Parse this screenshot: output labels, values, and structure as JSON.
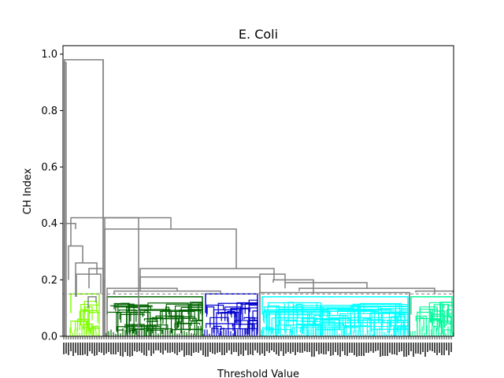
{
  "chart_data": {
    "type": "dendrogram",
    "title": "E. Coli",
    "xlabel": "Threshold Value",
    "ylabel": "CH Index",
    "ylim": [
      0.0,
      1.03
    ],
    "yticks": [
      {
        "value": 0.0,
        "label": "0.0"
      },
      {
        "value": 0.2,
        "label": "0.2"
      },
      {
        "value": 0.4,
        "label": "0.4"
      },
      {
        "value": 0.6,
        "label": "0.6"
      },
      {
        "value": 0.8,
        "label": "0.8"
      },
      {
        "value": 1.0,
        "label": "1.0"
      }
    ],
    "cut_threshold": 0.15,
    "link_color_above_threshold": "#808080",
    "cut_line_color": "#808080",
    "root_height": 0.98,
    "merges": [
      {
        "height": 0.42,
        "note": "left clusters joined to remaining clusters"
      },
      {
        "height": 0.38,
        "note": "green group joined to blue/cyan/spring groups"
      },
      {
        "height": 0.24,
        "note": "green-side merge"
      },
      {
        "height": 0.21,
        "note": "blue joined to cyan/spring"
      },
      {
        "height": 0.19,
        "note": "cyan joined to spring green"
      },
      {
        "height": 0.17,
        "note": "cyan internal merge"
      }
    ],
    "clusters": [
      {
        "color": "#7fff00",
        "top_height": 0.15
      },
      {
        "color": "#006400",
        "top_height": 0.14
      },
      {
        "color": "#0000cd",
        "top_height": 0.15
      },
      {
        "color": "#00ffff",
        "top_height": 0.14
      },
      {
        "color": "#00fa9a",
        "top_height": 0.14
      }
    ],
    "grid": false
  }
}
